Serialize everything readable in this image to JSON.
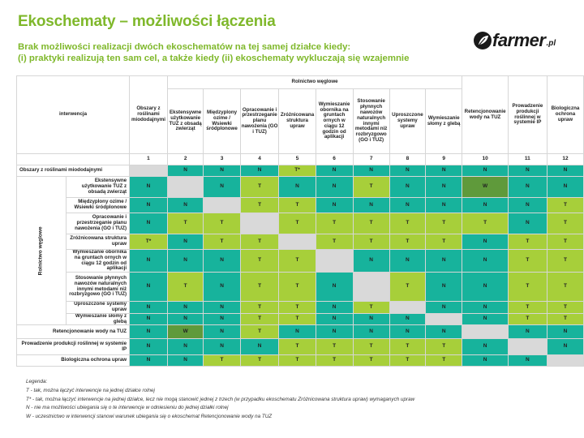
{
  "title": "Ekoschematy – możliwości łączenia",
  "subtitle_line1": "Brak możliwości realizacji dwóch ekoschematów na tej samej działce kiedy:",
  "subtitle_line2": "(i) praktyki realizują ten sam cel, a także kiedy (ii) ekoschematy wykluczają się wzajemnie",
  "logo": {
    "word": "farmer",
    "suffix": ".pl"
  },
  "table": {
    "group_header": "Rolnictwo węglowe",
    "corner_label": "interwencja",
    "side_label": "Rolnictwo węglowe",
    "columns": [
      {
        "label": "Obszary z roślinami miododajnymi",
        "num": "1"
      },
      {
        "label": "Ekstensywne użytkowanie TUZ z obsadą zwierząt",
        "num": "2"
      },
      {
        "label": "Międzyplony ozime / Wsiewki śródplonowe",
        "num": "3"
      },
      {
        "label": "Opracowanie i przestrzeganie planu nawożenia (GO i TUZ)",
        "num": "4"
      },
      {
        "label": "Zróżnicowana struktura upraw",
        "num": "5"
      },
      {
        "label": "Wymieszanie obornika na gruntach ornych w ciągu 12 godzin od aplikacji",
        "num": "6"
      },
      {
        "label": "Stosowanie płynnych nawozów naturalnych innymi metodami niż rozbryzgowo (GO i TUZ)",
        "num": "7"
      },
      {
        "label": "Uproszczone systemy upraw",
        "num": "8"
      },
      {
        "label": "Wymieszanie słomy z glebą",
        "num": "9"
      },
      {
        "label": "Retencjonowanie wody na TUZ",
        "num": "10"
      },
      {
        "label": "Prowadzenie produkcji roślinnej w systemie IP",
        "num": "11"
      },
      {
        "label": "Biologiczna ochrona upraw",
        "num": "12"
      }
    ],
    "rows": [
      {
        "label": "Obszary z roślinami miododajnymi",
        "cells": [
          [
            "",
            "grey"
          ],
          [
            "N",
            "teal"
          ],
          [
            "N",
            "teal"
          ],
          [
            "N",
            "teal"
          ],
          [
            "T*",
            "lime"
          ],
          [
            "N",
            "teal"
          ],
          [
            "N",
            "teal"
          ],
          [
            "N",
            "teal"
          ],
          [
            "N",
            "teal"
          ],
          [
            "N",
            "teal"
          ],
          [
            "N",
            "teal"
          ],
          [
            "N",
            "teal"
          ]
        ]
      },
      {
        "label": "Ekstensywne użytkowanie TUZ z obsadą zwierząt",
        "cells": [
          [
            "N",
            "teal"
          ],
          [
            "",
            "grey"
          ],
          [
            "N",
            "teal"
          ],
          [
            "T",
            "lime"
          ],
          [
            "N",
            "teal"
          ],
          [
            "N",
            "teal"
          ],
          [
            "T",
            "lime"
          ],
          [
            "N",
            "teal"
          ],
          [
            "N",
            "teal"
          ],
          [
            "W",
            "dkgreen"
          ],
          [
            "N",
            "teal"
          ],
          [
            "N",
            "teal"
          ]
        ]
      },
      {
        "label": "Międzyplony ozime / Wsiewki śródplonowe",
        "cells": [
          [
            "N",
            "teal"
          ],
          [
            "N",
            "teal"
          ],
          [
            "",
            "grey"
          ],
          [
            "T",
            "lime"
          ],
          [
            "T",
            "lime"
          ],
          [
            "N",
            "teal"
          ],
          [
            "N",
            "teal"
          ],
          [
            "N",
            "teal"
          ],
          [
            "N",
            "teal"
          ],
          [
            "N",
            "teal"
          ],
          [
            "N",
            "teal"
          ],
          [
            "T",
            "lime"
          ]
        ]
      },
      {
        "label": "Opracowanie i przestrzeganie planu nawożenia (GO i TUZ)",
        "cells": [
          [
            "N",
            "teal"
          ],
          [
            "T",
            "lime"
          ],
          [
            "T",
            "lime"
          ],
          [
            "",
            "grey"
          ],
          [
            "T",
            "lime"
          ],
          [
            "T",
            "lime"
          ],
          [
            "T",
            "lime"
          ],
          [
            "T",
            "lime"
          ],
          [
            "T",
            "lime"
          ],
          [
            "T",
            "lime"
          ],
          [
            "N",
            "teal"
          ],
          [
            "T",
            "lime"
          ]
        ]
      },
      {
        "label": "Zróżnicowana struktura upraw",
        "cells": [
          [
            "T*",
            "lime"
          ],
          [
            "N",
            "teal"
          ],
          [
            "T",
            "lime"
          ],
          [
            "T",
            "lime"
          ],
          [
            "",
            "grey"
          ],
          [
            "T",
            "lime"
          ],
          [
            "T",
            "lime"
          ],
          [
            "T",
            "lime"
          ],
          [
            "T",
            "lime"
          ],
          [
            "N",
            "teal"
          ],
          [
            "T",
            "lime"
          ],
          [
            "T",
            "lime"
          ]
        ]
      },
      {
        "label": "Wymieszanie obornika na gruntach ornych w ciągu 12 godzin od aplikacji",
        "cells": [
          [
            "N",
            "teal"
          ],
          [
            "N",
            "teal"
          ],
          [
            "N",
            "teal"
          ],
          [
            "T",
            "lime"
          ],
          [
            "T",
            "lime"
          ],
          [
            "",
            "grey"
          ],
          [
            "N",
            "teal"
          ],
          [
            "N",
            "teal"
          ],
          [
            "N",
            "teal"
          ],
          [
            "N",
            "teal"
          ],
          [
            "T",
            "lime"
          ],
          [
            "T",
            "lime"
          ]
        ]
      },
      {
        "label": "Stosowanie płynnych nawozów naturalnych innymi metodami niż rozbryzgowo (GO i TUZ)",
        "cells": [
          [
            "N",
            "teal"
          ],
          [
            "T",
            "lime"
          ],
          [
            "N",
            "teal"
          ],
          [
            "T",
            "lime"
          ],
          [
            "T",
            "lime"
          ],
          [
            "N",
            "teal"
          ],
          [
            "",
            "grey"
          ],
          [
            "T",
            "lime"
          ],
          [
            "N",
            "teal"
          ],
          [
            "N",
            "teal"
          ],
          [
            "T",
            "lime"
          ],
          [
            "T",
            "lime"
          ]
        ]
      },
      {
        "label": "Uproszczone systemy upraw",
        "cells": [
          [
            "N",
            "teal"
          ],
          [
            "N",
            "teal"
          ],
          [
            "N",
            "teal"
          ],
          [
            "T",
            "lime"
          ],
          [
            "T",
            "lime"
          ],
          [
            "N",
            "teal"
          ],
          [
            "T",
            "lime"
          ],
          [
            "",
            "grey"
          ],
          [
            "N",
            "teal"
          ],
          [
            "N",
            "teal"
          ],
          [
            "T",
            "lime"
          ],
          [
            "T",
            "lime"
          ]
        ]
      },
      {
        "label": "Wymieszanie słomy z glebą",
        "cells": [
          [
            "N",
            "teal"
          ],
          [
            "N",
            "teal"
          ],
          [
            "N",
            "teal"
          ],
          [
            "T",
            "lime"
          ],
          [
            "T",
            "lime"
          ],
          [
            "N",
            "teal"
          ],
          [
            "N",
            "teal"
          ],
          [
            "N",
            "teal"
          ],
          [
            "",
            "grey"
          ],
          [
            "N",
            "teal"
          ],
          [
            "T",
            "lime"
          ],
          [
            "T",
            "lime"
          ]
        ]
      },
      {
        "label": "Retencjonowanie wody na TUZ",
        "cells": [
          [
            "N",
            "teal"
          ],
          [
            "W",
            "dkgreen"
          ],
          [
            "N",
            "teal"
          ],
          [
            "T",
            "lime"
          ],
          [
            "N",
            "teal"
          ],
          [
            "N",
            "teal"
          ],
          [
            "N",
            "teal"
          ],
          [
            "N",
            "teal"
          ],
          [
            "N",
            "teal"
          ],
          [
            "",
            "grey"
          ],
          [
            "N",
            "teal"
          ],
          [
            "N",
            "teal"
          ]
        ]
      },
      {
        "label": "Prowadzenie produkcji roślinnej w systemie IP",
        "cells": [
          [
            "N",
            "teal"
          ],
          [
            "N",
            "teal"
          ],
          [
            "N",
            "teal"
          ],
          [
            "N",
            "teal"
          ],
          [
            "T",
            "lime"
          ],
          [
            "T",
            "lime"
          ],
          [
            "T",
            "lime"
          ],
          [
            "T",
            "lime"
          ],
          [
            "T",
            "lime"
          ],
          [
            "N",
            "teal"
          ],
          [
            "",
            "grey"
          ],
          [
            "N",
            "teal"
          ]
        ]
      },
      {
        "label": "Biologiczna ochrona upraw",
        "cells": [
          [
            "N",
            "teal"
          ],
          [
            "N",
            "teal"
          ],
          [
            "T",
            "lime"
          ],
          [
            "T",
            "lime"
          ],
          [
            "T",
            "lime"
          ],
          [
            "T",
            "lime"
          ],
          [
            "T",
            "lime"
          ],
          [
            "T",
            "lime"
          ],
          [
            "T",
            "lime"
          ],
          [
            "N",
            "teal"
          ],
          [
            "N",
            "teal"
          ],
          [
            "",
            "grey"
          ]
        ]
      }
    ]
  },
  "legend": {
    "title": "Legenda:",
    "items": [
      "T - tak, można łączyć interwencje na  jednej działce rolnej",
      "T* - tak, można łączyć interwencje na jednej działce, lecz nie mogą stanowić jednej z trzech (w przypadku ekoschematu Zróżnicowana struktura upraw) wymaganych upraw",
      "N - nie ma możliwości ubiegania się o te interwencje w odniesieniu do jednej działki rolnej",
      "W - uczestnictwo w interwencji stanowi warunek ubiegania się o ekoschemat Retencjonowanie wody na TUZ"
    ]
  },
  "colors": {
    "title_green": "#7fb82b",
    "teal": "#17b39c",
    "lime": "#a7cf3a",
    "grey": "#d9d9d9",
    "dark_green": "#5f9a3b"
  }
}
